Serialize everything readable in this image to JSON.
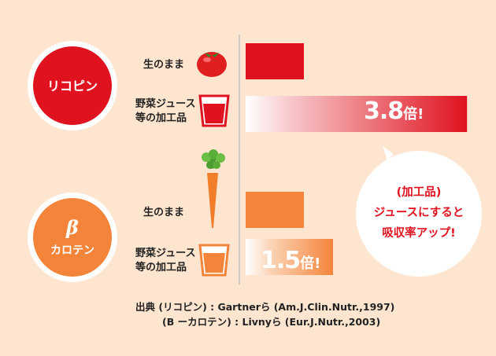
{
  "chart_data": {
    "type": "bar",
    "groups": [
      {
        "name": "リコピン",
        "color": "#e0121f",
        "categories": [
          "生のまま",
          "野菜ジュース等の加工品"
        ],
        "values": [
          1,
          3.8
        ],
        "annotation": "3.8倍！"
      },
      {
        "name_symbol": "β",
        "name": "カロテン",
        "color": "#f4843a",
        "categories": [
          "生のまま",
          "野菜ジュース等の加工品"
        ],
        "values": [
          1,
          1.5
        ],
        "annotation": "1.5倍！"
      }
    ]
  },
  "labels": {
    "raw": "生のまま",
    "processed_line1": "野菜ジュース",
    "processed_line2": "等の加工品"
  },
  "multipliers": {
    "lyco_num": "3.8",
    "beta_num": "1.5",
    "unit": "倍",
    "mark": "!"
  },
  "bubble": {
    "line1": "(加工品)",
    "line2": "ジュースにすると",
    "line3": "吸収率アップ!"
  },
  "citation": {
    "line1": "出典 (リコピン) : Gartnerら (Am.J.Clin.Nutr.,1997)",
    "line2": "(B ーカロテン) : Livnyら (Eur.J.Nutr.,2003)"
  },
  "colors": {
    "background": "#fde5cf",
    "lycopene": "#e0121f",
    "carotene": "#f4843a"
  }
}
